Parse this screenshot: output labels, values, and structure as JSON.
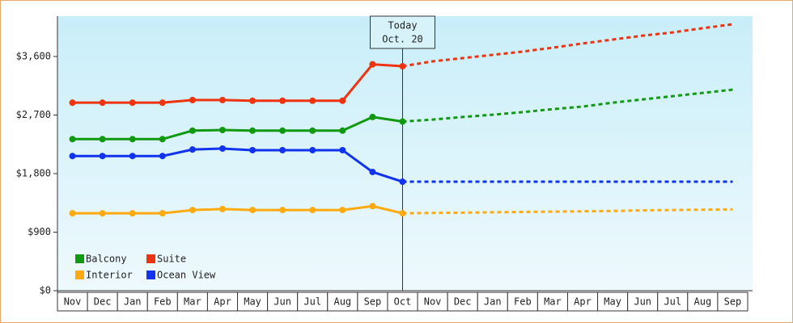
{
  "chart_data": {
    "type": "line",
    "annotation": {
      "title": "Today",
      "date": "Oct. 20"
    },
    "categories": [
      "Nov",
      "Dec",
      "Jan",
      "Feb",
      "Mar",
      "Apr",
      "May",
      "Jun",
      "Jul",
      "Aug",
      "Sep",
      "Oct",
      "Nov",
      "Dec",
      "Jan",
      "Feb",
      "Mar",
      "Apr",
      "May",
      "Jun",
      "Jul",
      "Aug",
      "Sep"
    ],
    "ylim": [
      0,
      4220
    ],
    "yticks": [
      {
        "value": 0,
        "label": "$0"
      },
      {
        "value": 900,
        "label": "$900"
      },
      {
        "value": 1800,
        "label": "$1,800"
      },
      {
        "value": 2700,
        "label": "$2,700"
      },
      {
        "value": 3600,
        "label": "$3,600"
      }
    ],
    "grid": false,
    "series": [
      {
        "name": "Balcony",
        "color": "#119911",
        "values": [
          2330,
          2330,
          2330,
          2330,
          2460,
          2470,
          2460,
          2460,
          2460,
          2460,
          2670,
          2600,
          null,
          null,
          null,
          null,
          null,
          null,
          null,
          null,
          null,
          null,
          null
        ],
        "forecast_values": [
          null,
          null,
          null,
          null,
          null,
          null,
          null,
          null,
          null,
          null,
          null,
          2600,
          2630,
          2670,
          2705,
          2745,
          2790,
          2830,
          2890,
          2940,
          2990,
          3040,
          3090
        ]
      },
      {
        "name": "Suite",
        "color": "#ee3311",
        "values": [
          2890,
          2890,
          2890,
          2890,
          2930,
          2930,
          2920,
          2920,
          2920,
          2920,
          3480,
          3450,
          null,
          null,
          null,
          null,
          null,
          null,
          null,
          null,
          null,
          null,
          null
        ],
        "forecast_values": [
          null,
          null,
          null,
          null,
          null,
          null,
          null,
          null,
          null,
          null,
          null,
          3450,
          3525,
          3575,
          3625,
          3675,
          3735,
          3800,
          3860,
          3920,
          3970,
          4035,
          4095
        ]
      },
      {
        "name": "Interior",
        "color": "#ffaa11",
        "values": [
          1190,
          1190,
          1190,
          1190,
          1240,
          1255,
          1240,
          1240,
          1240,
          1240,
          1300,
          1190,
          null,
          null,
          null,
          null,
          null,
          null,
          null,
          null,
          null,
          null,
          null
        ],
        "forecast_values": [
          null,
          null,
          null,
          null,
          null,
          null,
          null,
          null,
          null,
          null,
          null,
          1190,
          1195,
          1200,
          1205,
          1210,
          1215,
          1220,
          1225,
          1235,
          1240,
          1245,
          1250
        ]
      },
      {
        "name": "Ocean View",
        "color": "#1133ee",
        "values": [
          2070,
          2070,
          2070,
          2070,
          2170,
          2185,
          2160,
          2160,
          2160,
          2160,
          1825,
          1675,
          null,
          null,
          null,
          null,
          null,
          null,
          null,
          null,
          null,
          null,
          null
        ],
        "forecast_values": [
          null,
          null,
          null,
          null,
          null,
          null,
          null,
          null,
          null,
          null,
          null,
          1675,
          1675,
          1675,
          1675,
          1675,
          1675,
          1675,
          1675,
          1675,
          1675,
          1675,
          1675
        ]
      }
    ]
  }
}
